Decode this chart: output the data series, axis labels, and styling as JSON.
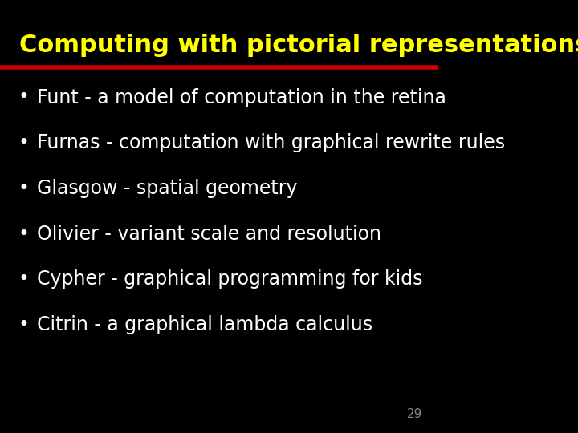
{
  "title": "Computing with pictorial representations",
  "title_color": "#ffff00",
  "title_fontsize": 22,
  "background_color": "#000000",
  "line_color": "#cc0000",
  "bullet_color": "#ffffff",
  "bullet_fontsize": 17,
  "page_number": "29",
  "page_number_color": "#888888",
  "page_number_fontsize": 11,
  "bullets": [
    "Funt - a model of computation in the retina",
    "Furnas - computation with graphical rewrite rules",
    "Glasgow - spatial geometry",
    "Olivier - variant scale and resolution",
    "Cypher - graphical programming for kids",
    "Citrin - a graphical lambda calculus"
  ]
}
